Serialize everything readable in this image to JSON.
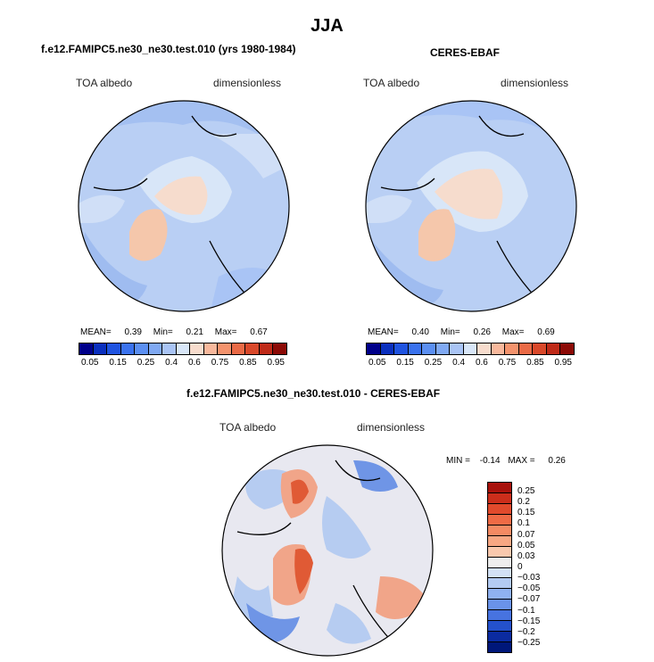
{
  "figure": {
    "title": "JJA"
  },
  "panels": [
    {
      "title": "f.e12.FAMIPC5.ne30_ne30.test.010 (yrs 1980-1984)",
      "variable": "TOA albedo",
      "units": "dimensionless",
      "stats": {
        "mean_label": "MEAN=",
        "mean": "0.39",
        "min_label": "Min=",
        "min": "0.21",
        "max_label": "Max=",
        "max": "0.67"
      }
    },
    {
      "title": "CERES-EBAF",
      "variable": "TOA albedo",
      "units": "dimensionless",
      "stats": {
        "mean_label": "MEAN=",
        "mean": "0.40",
        "min_label": "Min=",
        "min": "0.26",
        "max_label": "Max=",
        "max": "0.69"
      }
    },
    {
      "title": "f.e12.FAMIPC5.ne30_ne30.test.010 - CERES-EBAF",
      "variable": "TOA albedo",
      "units": "dimensionless",
      "stats": {
        "min_label": "MIN =",
        "min": "-0.14",
        "max_label": "MAX =",
        "max": "0.26"
      }
    }
  ],
  "colorbar_abs": {
    "ticks": [
      "0.05",
      "0.15",
      "0.25",
      "0.4",
      "0.6",
      "0.75",
      "0.85",
      "0.95"
    ],
    "colors": [
      "#00008a",
      "#0a2fbe",
      "#1f53e0",
      "#3a72ee",
      "#5b8ff2",
      "#80a9f3",
      "#a9c4f5",
      "#d8e6f8",
      "#f7dccd",
      "#f8b89c",
      "#f4936d",
      "#ea6a46",
      "#d9482a",
      "#bf2a18",
      "#8c0a06"
    ]
  },
  "colorbar_diff": {
    "labels": [
      "0.25",
      "0.2",
      "0.15",
      "0.1",
      "0.07",
      "0.05",
      "0.03",
      "0",
      "-0.03",
      "-0.05",
      "-0.07",
      "-0.1",
      "-0.15",
      "-0.2",
      "-0.25"
    ],
    "colors": [
      "#a8120c",
      "#cc2e1b",
      "#e14a2c",
      "#ef6a45",
      "#f48a63",
      "#f7a783",
      "#f9c8ad",
      "#eeeeee",
      "#d3e1f6",
      "#b3cbf3",
      "#8fb1f0",
      "#6a93ea",
      "#4773e0",
      "#2451cc",
      "#0b2ba0",
      "#00177a"
    ]
  },
  "maps": {
    "abs_palette": {
      "ocean": "#b9cff4",
      "ocean_dark": "#9fbcf0",
      "land": "#d0dff7",
      "ice": "#f6dccd",
      "greenland": "#f5c7ab"
    },
    "diff_palette": {
      "base": "#e8e8f0",
      "pos": "#f1a589",
      "pos_strong": "#e05a35",
      "neg": "#b6ccf1",
      "neg_strong": "#6f95e6"
    }
  }
}
